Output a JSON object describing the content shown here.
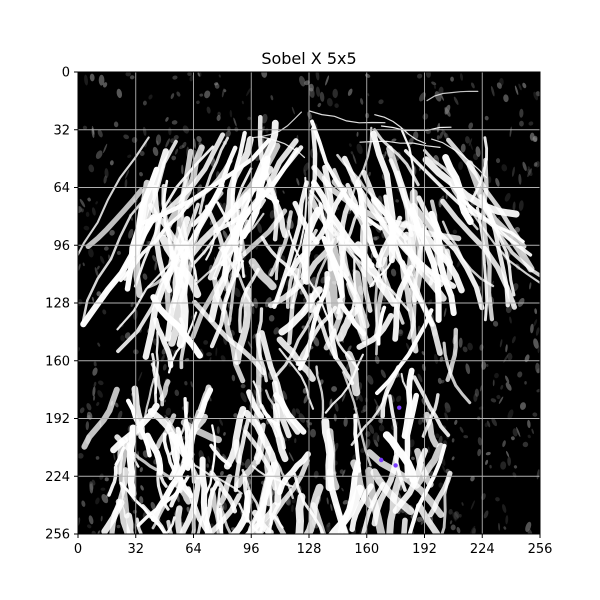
{
  "chart_data": {
    "type": "heatmap",
    "title": "Sobel X 5x5",
    "xlabel": "",
    "ylabel": "",
    "xlim": [
      0,
      256
    ],
    "ylim": [
      256,
      0
    ],
    "x_ticks": [
      0,
      32,
      64,
      96,
      128,
      160,
      192,
      224,
      256
    ],
    "y_ticks": [
      0,
      32,
      64,
      96,
      128,
      160,
      192,
      224,
      256
    ],
    "x_tick_labels": [
      "0",
      "32",
      "64",
      "96",
      "128",
      "160",
      "192",
      "224",
      "256"
    ],
    "y_tick_labels": [
      "0",
      "32",
      "64",
      "96",
      "128",
      "160",
      "192",
      "224",
      "256"
    ],
    "grid": true,
    "colormap": "gray",
    "image_size": [
      256,
      256
    ]
  },
  "colors": {
    "background": "#ffffff",
    "image_dark": "#000000",
    "image_light": "#ffffff",
    "grid": "#b0b0b0",
    "axis": "#000000",
    "accent_purple": "#7a3cff"
  }
}
